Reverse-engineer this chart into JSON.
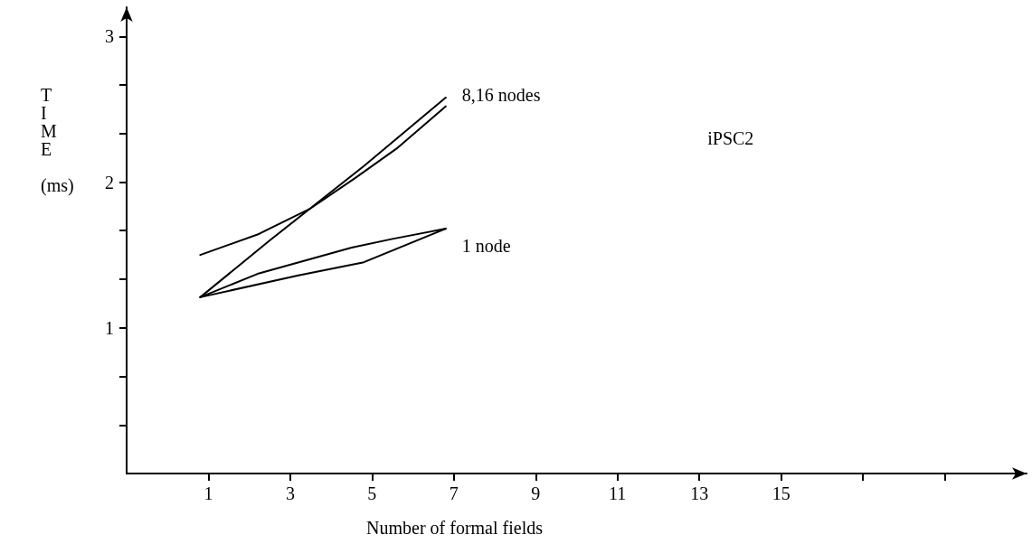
{
  "chart_data": {
    "type": "line",
    "xlabel": "Number of formal fields",
    "ylabel": "TIME (ms)",
    "xlim": [
      -1,
      21
    ],
    "ylim": [
      0,
      3.2
    ],
    "xticks": [
      1,
      3,
      5,
      7,
      9,
      11,
      13,
      15,
      {
        "value": 17,
        "label": null
      },
      {
        "value": 19,
        "label": null
      }
    ],
    "yticks": [
      {
        "value": 0.333,
        "label": null
      },
      {
        "value": 0.667,
        "label": null
      },
      1,
      {
        "value": 1.333,
        "label": null
      },
      {
        "value": 1.667,
        "label": null
      },
      2,
      {
        "value": 2.333,
        "label": null
      },
      {
        "value": 2.667,
        "label": null
      },
      3
    ],
    "grid": false,
    "marker": "none",
    "line_style": "solid",
    "series": [
      {
        "color": "#000000",
        "x": [
          0.8,
          2.5,
          4.8,
          6.8
        ],
        "values": [
          1.21,
          1.6,
          2.11,
          2.58
        ]
      },
      {
        "color": "#000000",
        "x": [
          0.8,
          2.2,
          3.5,
          4.6,
          5.6,
          6.8
        ],
        "values": [
          1.5,
          1.64,
          1.82,
          2.03,
          2.23,
          2.52
        ]
      },
      {
        "color": "#000000",
        "x": [
          0.8,
          2.2,
          4.5,
          5.5,
          6.8
        ],
        "values": [
          1.21,
          1.37,
          1.55,
          1.61,
          1.68
        ]
      },
      {
        "color": "#000000",
        "x": [
          0.8,
          3.2,
          4.8,
          6.8
        ],
        "values": [
          1.21,
          1.36,
          1.45,
          1.68
        ]
      }
    ],
    "annotations": [
      "8,16 nodes",
      "1 node",
      "iPSC2"
    ]
  }
}
